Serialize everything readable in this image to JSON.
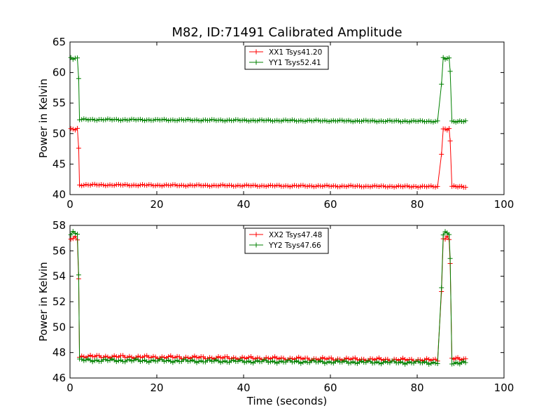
{
  "chart_data": [
    {
      "type": "line",
      "title": "M82, ID:71491 Calibrated Amplitude",
      "xlabel": "",
      "ylabel": "Power in Kelvin",
      "xlim": [
        0,
        100
      ],
      "ylim": [
        40,
        65
      ],
      "xticks": [
        0,
        20,
        40,
        60,
        80,
        100
      ],
      "yticks": [
        40,
        45,
        50,
        55,
        60,
        65
      ],
      "grid": false,
      "legend_position": "top-center",
      "marker": "+",
      "series": [
        {
          "name": "XX1 Tsys41.20",
          "color": "#ff0000",
          "on_level": 50.7,
          "ramp_value": 47.6,
          "baseline_start": 41.6,
          "baseline_end": 41.3,
          "tail_level": 41.3,
          "transition_points": [
            [
              85.6,
              46.6
            ],
            [
              87.6,
              48.8
            ]
          ]
        },
        {
          "name": "YY1 Tsys52.41",
          "color": "#008000",
          "on_level": 62.3,
          "ramp_value": 59.0,
          "baseline_start": 52.3,
          "baseline_end": 52.0,
          "tail_level": 52.0,
          "transition_points": [
            [
              85.6,
              58.1
            ],
            [
              87.6,
              60.2
            ]
          ]
        }
      ]
    },
    {
      "type": "line",
      "title": "",
      "xlabel": "Time (seconds)",
      "ylabel": "Power in Kelvin",
      "xlim": [
        0,
        100
      ],
      "ylim": [
        46,
        58
      ],
      "xticks": [
        0,
        20,
        40,
        60,
        80,
        100
      ],
      "yticks": [
        46,
        48,
        50,
        52,
        54,
        56,
        58
      ],
      "grid": false,
      "legend_position": "top-center",
      "marker": "+",
      "series": [
        {
          "name": "XX2 Tsys47.48",
          "color": "#ff0000",
          "on_level": 57.0,
          "ramp_value": 53.8,
          "baseline_start": 47.7,
          "baseline_end": 47.4,
          "tail_level": 47.5,
          "transition_points": [
            [
              85.6,
              52.8
            ],
            [
              87.6,
              55.0
            ]
          ]
        },
        {
          "name": "YY2 Tsys47.66",
          "color": "#008000",
          "on_level": 57.4,
          "ramp_value": 54.1,
          "baseline_start": 47.4,
          "baseline_end": 47.2,
          "tail_level": 47.2,
          "transition_points": [
            [
              85.6,
              53.1
            ],
            [
              87.6,
              55.4
            ]
          ]
        }
      ]
    }
  ]
}
